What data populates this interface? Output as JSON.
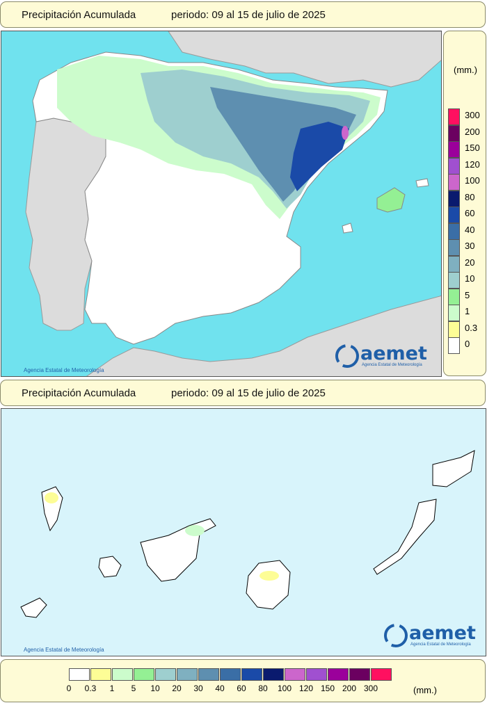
{
  "panels": [
    {
      "title": "Precipitación Acumulada",
      "period": "periodo: 09 al 15 de julio de 2025"
    },
    {
      "title": "Precipitación Acumulada",
      "period": "periodo: 09 al 15 de julio de 2025"
    }
  ],
  "legend": {
    "unit": "(mm.)",
    "unit_bottom": "(mm.)",
    "levels": [
      {
        "label": "0",
        "color": "#ffffff"
      },
      {
        "label": "0.3",
        "color": "#fdfd96"
      },
      {
        "label": "1",
        "color": "#ccfccc"
      },
      {
        "label": "5",
        "color": "#94f094"
      },
      {
        "label": "10",
        "color": "#9ecfcf"
      },
      {
        "label": "20",
        "color": "#7fb0c0"
      },
      {
        "label": "30",
        "color": "#5e8fb0"
      },
      {
        "label": "40",
        "color": "#3a6ea6"
      },
      {
        "label": "60",
        "color": "#1a4aa8"
      },
      {
        "label": "80",
        "color": "#0a1a6e"
      },
      {
        "label": "100",
        "color": "#cc66cc"
      },
      {
        "label": "120",
        "color": "#a050d0"
      },
      {
        "label": "150",
        "color": "#9b009b"
      },
      {
        "label": "200",
        "color": "#6b0060"
      },
      {
        "label": "300",
        "color": "#ff1060"
      }
    ]
  },
  "logo": {
    "name": "aemet",
    "subtitle": "Agencia Estatal de Meteorología"
  },
  "credit": "Agencia Estatal de Meteorología",
  "colors": {
    "sea": "#70e2ee",
    "sea_canarias": "#d8f4fb",
    "land_foreign": "#dcdcdc",
    "land_spain": "#ffffff"
  }
}
